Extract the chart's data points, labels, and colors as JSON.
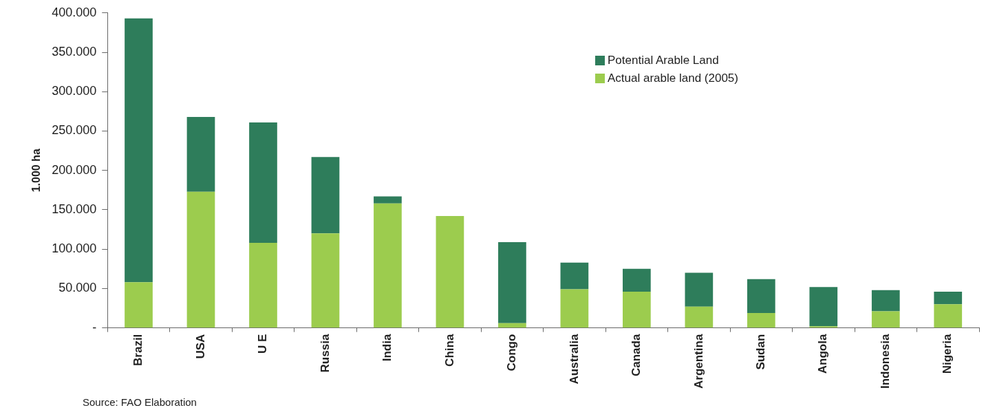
{
  "chart_data": {
    "type": "bar",
    "stacked": true,
    "ylabel": "1.000 ha",
    "categories": [
      "Brazil",
      "USA",
      "U E",
      "Russia",
      "India",
      "China",
      "Congo",
      "Australia",
      "Canada",
      "Argentina",
      "Sudan",
      "Angola",
      "Indonesia",
      "Nigeria"
    ],
    "series": [
      {
        "name": "Actual arable land (2005)",
        "color": "#9ccc4e",
        "values": [
          58000,
          173000,
          108000,
          120000,
          158000,
          142000,
          6000,
          49000,
          46000,
          27000,
          19000,
          2000,
          21000,
          30000
        ]
      },
      {
        "name": "Potential Arable Land",
        "color": "#2e7d5b",
        "values": [
          335000,
          95000,
          153000,
          97000,
          9000,
          0,
          103000,
          34000,
          29000,
          43000,
          43000,
          50000,
          27000,
          16000
        ]
      }
    ],
    "ylim": [
      0,
      400000
    ],
    "yticks": [
      {
        "value": 0,
        "label": "-"
      },
      {
        "value": 50000,
        "label": "50.000"
      },
      {
        "value": 100000,
        "label": "100.000"
      },
      {
        "value": 150000,
        "label": "150.000"
      },
      {
        "value": 200000,
        "label": "200.000"
      },
      {
        "value": 250000,
        "label": "250.000"
      },
      {
        "value": 300000,
        "label": "300.000"
      },
      {
        "value": 350000,
        "label": "350.000"
      },
      {
        "value": 400000,
        "label": "400.000"
      }
    ],
    "grid": false,
    "legend": "top right",
    "annotations": [
      "Source: FAO Elaboration"
    ]
  }
}
